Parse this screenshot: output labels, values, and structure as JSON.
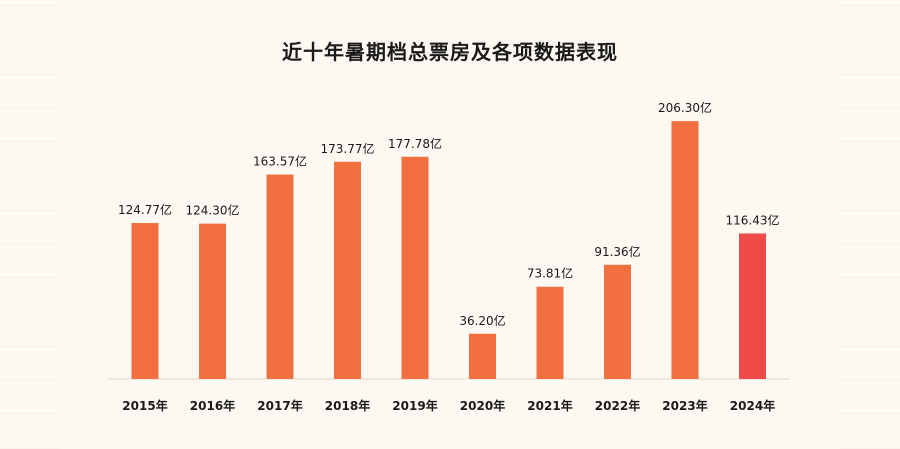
{
  "chart_data": {
    "type": "bar",
    "title": "近十年暑期档总票房及各项数据表现",
    "categories": [
      "2015年",
      "2016年",
      "2017年",
      "2018年",
      "2019年",
      "2020年",
      "2021年",
      "2022年",
      "2023年",
      "2024年"
    ],
    "values": [
      124.77,
      124.3,
      163.57,
      173.77,
      177.78,
      36.2,
      73.81,
      91.36,
      206.3,
      116.43
    ],
    "value_labels": [
      "124.77亿",
      "124.30亿",
      "163.57亿",
      "173.77亿",
      "177.78亿",
      "36.20亿",
      "73.81亿",
      "91.36亿",
      "206.30亿",
      "116.43亿"
    ],
    "ylim": [
      0,
      220
    ],
    "grid": false,
    "colors": {
      "bar": "#f2703f",
      "highlight": "#ef4b48",
      "baseline": "#e3d8cc",
      "text": "#1a1a1a"
    },
    "highlight_index": 9
  }
}
